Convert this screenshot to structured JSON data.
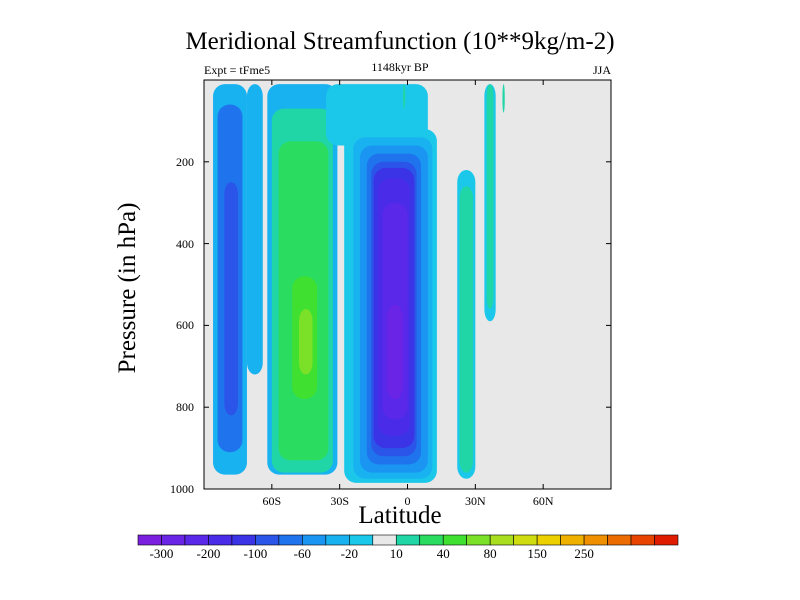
{
  "chart_data": {
    "type": "heatmap",
    "title": "Meridional Streamfunction (10**9kg/m-2)",
    "left_label": "Expt = tFme5",
    "center_label": "1148kyr BP",
    "right_label": "JJA",
    "xlabel": "Latitude",
    "ylabel": "Pressure (in hPa)",
    "xlim": [
      -90,
      90
    ],
    "ylim": [
      1000,
      0
    ],
    "y_ticks": [
      {
        "value": 200,
        "label": "200"
      },
      {
        "value": 400,
        "label": "400"
      },
      {
        "value": 600,
        "label": "600"
      },
      {
        "value": 800,
        "label": "800"
      },
      {
        "value": 1000,
        "label": "1000"
      }
    ],
    "x_ticks": [
      {
        "value": -60,
        "label": "60S"
      },
      {
        "value": -30,
        "label": "30S"
      },
      {
        "value": 0,
        "label": "0"
      },
      {
        "value": 30,
        "label": "30N"
      },
      {
        "value": 60,
        "label": "60N"
      }
    ],
    "colorbar": {
      "colors": [
        "#7a1ee0",
        "#6a24e6",
        "#5a28e8",
        "#4a2ce8",
        "#3a34e6",
        "#2b54e8",
        "#1f74ee",
        "#1a96f2",
        "#19b2f0",
        "#1cc8ea",
        "#e8e8e8",
        "#20d6a6",
        "#2adc60",
        "#40e030",
        "#7ae028",
        "#a8de1e",
        "#cfdc10",
        "#ecd000",
        "#f0b000",
        "#f09000",
        "#ec6c00",
        "#e84400",
        "#e01c00"
      ],
      "labels": [
        {
          "boundary": 1,
          "text": "-300"
        },
        {
          "boundary": 3,
          "text": "-200"
        },
        {
          "boundary": 5,
          "text": "-100"
        },
        {
          "boundary": 7,
          "text": "-60"
        },
        {
          "boundary": 9,
          "text": "-20"
        },
        {
          "boundary": 11,
          "text": "10"
        },
        {
          "boundary": 13,
          "text": "40"
        },
        {
          "boundary": 15,
          "text": "80"
        },
        {
          "boundary": 17,
          "text": "150"
        },
        {
          "boundary": 19,
          "text": "250"
        }
      ]
    },
    "background_color": "#e8e8e8",
    "cells": [
      {
        "lat0": -86,
        "lat1": -71,
        "p0": 10,
        "p1": 965,
        "color": "#19b2f0"
      },
      {
        "lat0": -84,
        "lat1": -73,
        "p0": 60,
        "p1": 910,
        "color": "#1f74ee"
      },
      {
        "lat0": -81,
        "lat1": -75,
        "p0": 250,
        "p1": 820,
        "color": "#2b54e8"
      },
      {
        "lat0": -71,
        "lat1": -64,
        "p0": 10,
        "p1": 720,
        "color": "#19b2f0"
      },
      {
        "lat0": -62,
        "lat1": -31,
        "p0": 10,
        "p1": 965,
        "color": "#19b2f0"
      },
      {
        "lat0": -60,
        "lat1": -33,
        "p0": 70,
        "p1": 960,
        "color": "#20d6a6"
      },
      {
        "lat0": -57,
        "lat1": -35,
        "p0": 150,
        "p1": 930,
        "color": "#2adc60"
      },
      {
        "lat0": -51,
        "lat1": -40,
        "p0": 480,
        "p1": 780,
        "color": "#40e030"
      },
      {
        "lat0": -48,
        "lat1": -42,
        "p0": 560,
        "p1": 720,
        "color": "#7ae028"
      },
      {
        "lat0": -36,
        "lat1": 9,
        "p0": 10,
        "p1": 160,
        "color": "#1cc8ea"
      },
      {
        "lat0": -28,
        "lat1": 13,
        "p0": 120,
        "p1": 985,
        "color": "#1cc8ea"
      },
      {
        "lat0": -24,
        "lat1": 11,
        "p0": 140,
        "p1": 975,
        "color": "#19b2f0"
      },
      {
        "lat0": -21,
        "lat1": 9,
        "p0": 160,
        "p1": 960,
        "color": "#1a96f2"
      },
      {
        "lat0": -18,
        "lat1": 6,
        "p0": 180,
        "p1": 940,
        "color": "#1f74ee"
      },
      {
        "lat0": -16,
        "lat1": 4,
        "p0": 200,
        "p1": 920,
        "color": "#2b54e8"
      },
      {
        "lat0": -15,
        "lat1": 3,
        "p0": 215,
        "p1": 900,
        "color": "#3a34e6"
      },
      {
        "lat0": -13,
        "lat1": 1,
        "p0": 240,
        "p1": 870,
        "color": "#4a2ce8"
      },
      {
        "lat0": -11,
        "lat1": 0,
        "p0": 300,
        "p1": 830,
        "color": "#5a28e8"
      },
      {
        "lat0": -9,
        "lat1": -2,
        "p0": 550,
        "p1": 780,
        "color": "#6a24e6"
      },
      {
        "lat0": -2,
        "lat1": -1,
        "p0": 10,
        "p1": 70,
        "color": "#20d6a6"
      },
      {
        "lat0": 22,
        "lat1": 30,
        "p0": 220,
        "p1": 975,
        "color": "#1cc8ea"
      },
      {
        "lat0": 23,
        "lat1": 29,
        "p0": 260,
        "p1": 960,
        "color": "#20d6a6"
      },
      {
        "lat0": 34,
        "lat1": 39,
        "p0": 10,
        "p1": 590,
        "color": "#1cc8ea"
      },
      {
        "lat0": 35,
        "lat1": 38,
        "p0": 10,
        "p1": 560,
        "color": "#20d6a6"
      },
      {
        "lat0": 42,
        "lat1": 43,
        "p0": 10,
        "p1": 80,
        "color": "#20d6a6"
      }
    ]
  }
}
